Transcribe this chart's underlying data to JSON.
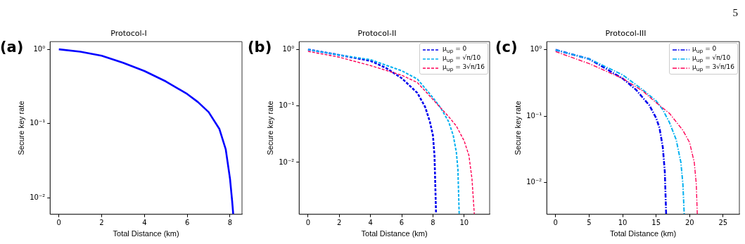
{
  "chart_data": [
    {
      "type": "line",
      "title": "Protocol-I",
      "xlabel": "Total Distance (km)",
      "ylabel": "Secure key rate",
      "log": "y",
      "grid": false,
      "legend": false,
      "line_style": "solid",
      "marker": "none",
      "annotations": [
        "(a)"
      ],
      "xlim": [
        -0.41,
        8.56
      ],
      "xticks": [
        0,
        2,
        4,
        6,
        8
      ],
      "ylim": [
        0.006,
        1.27
      ],
      "yticks": [
        {
          "value": 1,
          "label": "10⁰"
        },
        {
          "value": 0.1,
          "label": "10⁻¹"
        },
        {
          "value": 0.01,
          "label": "10⁻²"
        }
      ],
      "series": [
        {
          "color": "#0000ff",
          "x": [
            0,
            1,
            2,
            3,
            4,
            5,
            6,
            6.5,
            7,
            7.5,
            7.8,
            8,
            8.1,
            8.15
          ],
          "values": [
            1,
            0.93,
            0.82,
            0.66,
            0.51,
            0.37,
            0.25,
            0.195,
            0.143,
            0.085,
            0.045,
            0.018,
            0.009,
            0.006
          ]
        }
      ]
    },
    {
      "type": "line",
      "title": "Protocol-II",
      "xlabel": "Total Distance (km)",
      "ylabel": "Secure key rate",
      "log": "y",
      "grid": false,
      "legend": "top right",
      "line_style": "dashed",
      "marker": "none",
      "annotations": [
        "(b)"
      ],
      "xlim": [
        -0.57,
        11.63
      ],
      "xticks": [
        0,
        2,
        4,
        6,
        8,
        10
      ],
      "ylim": [
        0.0012,
        1.38
      ],
      "yticks": [
        {
          "value": 1,
          "label": "10⁰"
        },
        {
          "value": 0.1,
          "label": "10⁻¹"
        },
        {
          "value": 0.01,
          "label": "10⁻²"
        }
      ],
      "series": [
        {
          "name": "μ$_{up}$ = 0",
          "color": "#0000ee",
          "x": [
            0,
            2,
            4,
            5,
            6,
            7,
            7.5,
            7.8,
            8,
            8.1,
            8.2
          ],
          "values": [
            1,
            0.8,
            0.63,
            0.47,
            0.31,
            0.17,
            0.096,
            0.053,
            0.03,
            0.013,
            0.0012
          ]
        },
        {
          "name": "μ$_{up}$ = √π/10",
          "color": "#00b0f0",
          "x": [
            0,
            2,
            4,
            6,
            7,
            8,
            8.5,
            9,
            9.3,
            9.5,
            9.6,
            9.68
          ],
          "values": [
            1,
            0.8,
            0.66,
            0.42,
            0.3,
            0.14,
            0.092,
            0.053,
            0.03,
            0.015,
            0.0074,
            0.0012
          ]
        },
        {
          "name": "μ$_{up}$ = 3√π/16",
          "color": "#ff0055",
          "x": [
            0,
            2,
            4,
            6,
            7,
            8,
            9,
            9.5,
            10,
            10.3,
            10.5,
            10.65
          ],
          "values": [
            0.93,
            0.73,
            0.52,
            0.35,
            0.26,
            0.13,
            0.065,
            0.044,
            0.024,
            0.0134,
            0.0051,
            0.0012
          ]
        }
      ]
    },
    {
      "type": "line",
      "title": "Protocol-III",
      "xlabel": "Total Distance (km)",
      "ylabel": "Secure key rate",
      "log": "y",
      "grid": false,
      "legend": "top right",
      "line_style": "dashdot",
      "marker": "none",
      "annotations": [
        "(c)",
        "5"
      ],
      "xlim": [
        -1.32,
        27.43
      ],
      "xticks": [
        0,
        5,
        10,
        15,
        20,
        25
      ],
      "ylim": [
        0.0033,
        1.33
      ],
      "yticks": [
        {
          "value": 1,
          "label": "10⁰"
        },
        {
          "value": 0.1,
          "label": "10⁻¹"
        },
        {
          "value": 0.01,
          "label": "10⁻²"
        }
      ],
      "series": [
        {
          "name": "μ$_{up}$ = 0",
          "color": "#0000ee",
          "x": [
            0,
            5,
            10,
            12,
            14,
            15,
            15.5,
            16,
            16.3,
            16.5
          ],
          "values": [
            1,
            0.73,
            0.37,
            0.25,
            0.145,
            0.094,
            0.067,
            0.034,
            0.0145,
            0.0033
          ]
        },
        {
          "name": "μ$_{up}$ = √π/10",
          "color": "#00b0f0",
          "x": [
            0,
            5,
            10,
            13,
            15,
            16,
            17,
            18,
            18.7,
            19,
            19.2
          ],
          "values": [
            1,
            0.73,
            0.42,
            0.25,
            0.17,
            0.125,
            0.08,
            0.044,
            0.02,
            0.0094,
            0.0033
          ]
        },
        {
          "name": "μ$_{up}$ = 3√π/16",
          "color": "#ff0055",
          "x": [
            0,
            5,
            10,
            13,
            15,
            17,
            19,
            20,
            20.7,
            21,
            21.15
          ],
          "values": [
            0.94,
            0.62,
            0.37,
            0.24,
            0.16,
            0.11,
            0.061,
            0.04,
            0.02,
            0.0094,
            0.0033
          ]
        }
      ]
    }
  ]
}
